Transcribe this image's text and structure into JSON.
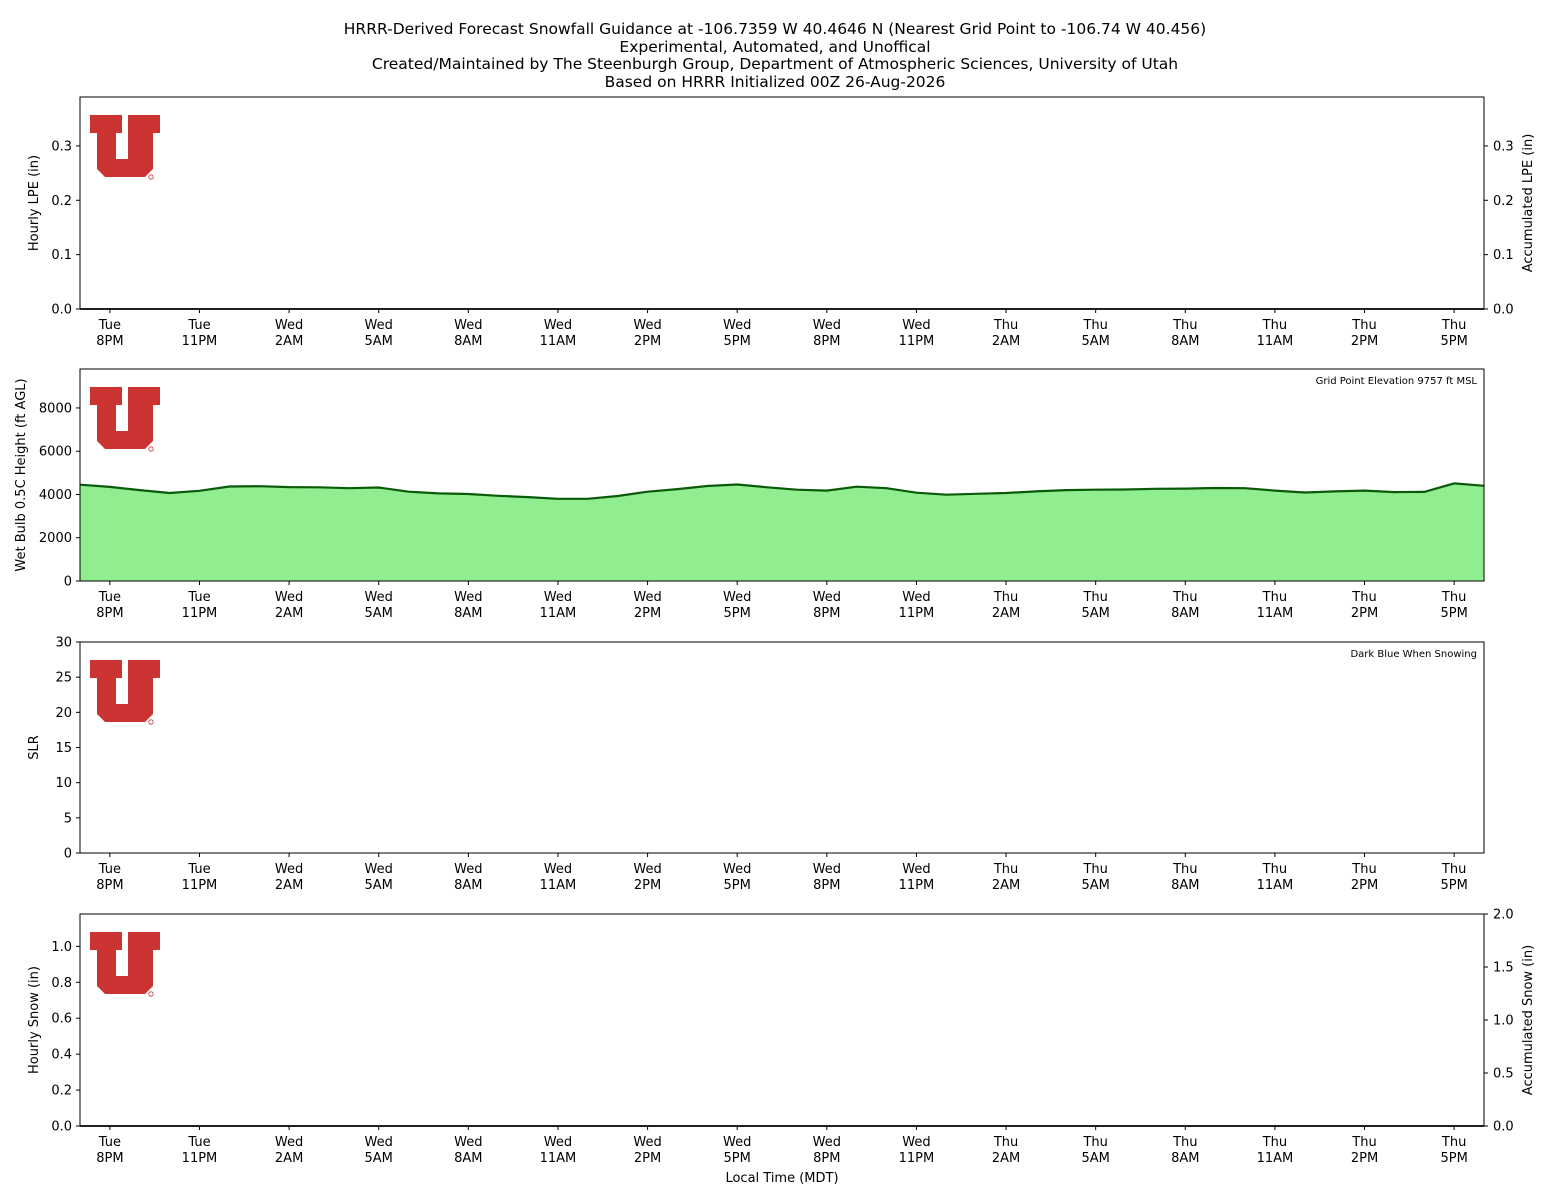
{
  "title_lines": [
    "HRRR-Derived Forecast Snowfall Guidance at -106.7359 W 40.4646 N (Nearest Grid Point to -106.74 W 40.456)",
    "Experimental, Automated, and Unoffical",
    "Created/Maintained by The Steenburgh Group, Department of Atmospheric Sciences, University of Utah",
    "Based on HRRR Initialized 00Z 26-Aug-2026"
  ],
  "xlabel": "Local Time (MDT)",
  "x_ticks": [
    {
      "hour": 1,
      "day": "Tue",
      "time": "8PM"
    },
    {
      "hour": 4,
      "day": "Tue",
      "time": "11PM"
    },
    {
      "hour": 7,
      "day": "Wed",
      "time": "2AM"
    },
    {
      "hour": 10,
      "day": "Wed",
      "time": "5AM"
    },
    {
      "hour": 13,
      "day": "Wed",
      "time": "8AM"
    },
    {
      "hour": 16,
      "day": "Wed",
      "time": "11AM"
    },
    {
      "hour": 19,
      "day": "Wed",
      "time": "2PM"
    },
    {
      "hour": 22,
      "day": "Wed",
      "time": "5PM"
    },
    {
      "hour": 25,
      "day": "Wed",
      "time": "8PM"
    },
    {
      "hour": 28,
      "day": "Wed",
      "time": "11PM"
    },
    {
      "hour": 31,
      "day": "Thu",
      "time": "2AM"
    },
    {
      "hour": 34,
      "day": "Thu",
      "time": "5AM"
    },
    {
      "hour": 37,
      "day": "Thu",
      "time": "8AM"
    },
    {
      "hour": 40,
      "day": "Thu",
      "time": "11AM"
    },
    {
      "hour": 43,
      "day": "Thu",
      "time": "2PM"
    },
    {
      "hour": 46,
      "day": "Thu",
      "time": "5PM"
    }
  ],
  "logo": {
    "color": "#cc3333",
    "icon": "university-of-utah-block-u-logo"
  },
  "chart_data": [
    {
      "type": "bar",
      "panel": "hourly-lpe",
      "ylabel": "Hourly LPE (in)",
      "y2label": "Accumulated LPE (in)",
      "ylim": [
        0,
        0.39
      ],
      "y_ticks": [
        "0.0",
        "0.1",
        "0.2",
        "0.3"
      ],
      "y2lim": [
        0,
        0.39
      ],
      "y2_ticks": [
        "0.0",
        "0.1",
        "0.2",
        "0.3"
      ],
      "xlim": [
        0,
        47
      ],
      "hours": [
        0,
        1,
        2,
        3,
        4,
        5,
        6,
        7,
        8,
        9,
        10,
        11,
        12,
        13,
        14,
        15,
        16,
        17,
        18,
        19,
        20,
        21,
        22,
        23,
        24,
        25,
        26,
        27,
        28,
        29,
        30,
        31,
        32,
        33,
        34,
        35,
        36,
        37,
        38,
        39,
        40,
        41,
        42,
        43,
        44,
        45,
        46,
        47
      ],
      "values": [
        0,
        0,
        0,
        0,
        0,
        0,
        0,
        0,
        0,
        0,
        0,
        0,
        0,
        0,
        0,
        0,
        0,
        0,
        0,
        0,
        0,
        0,
        0,
        0,
        0,
        0,
        0,
        0,
        0,
        0,
        0,
        0,
        0,
        0,
        0,
        0,
        0,
        0,
        0,
        0,
        0,
        0,
        0,
        0,
        0,
        0,
        0,
        0
      ],
      "accumulated": [
        0,
        0,
        0,
        0,
        0,
        0,
        0,
        0,
        0,
        0,
        0,
        0,
        0,
        0,
        0,
        0,
        0,
        0,
        0,
        0,
        0,
        0,
        0,
        0,
        0,
        0,
        0,
        0,
        0,
        0,
        0,
        0,
        0,
        0,
        0,
        0,
        0,
        0,
        0,
        0,
        0,
        0,
        0,
        0,
        0,
        0,
        0,
        0
      ],
      "accumulated_color": "#000000"
    },
    {
      "type": "area",
      "panel": "wet-bulb-height",
      "ylabel": "Wet Bulb 0.5C Height (ft AGL)",
      "annotation": "Grid Point Elevation 9757 ft MSL",
      "ylim": [
        0,
        9800
      ],
      "y_ticks": [
        "0",
        "2000",
        "4000",
        "6000",
        "8000"
      ],
      "xlim": [
        0,
        47
      ],
      "hours": [
        0,
        1,
        2,
        3,
        4,
        5,
        6,
        7,
        8,
        9,
        10,
        11,
        12,
        13,
        14,
        15,
        16,
        17,
        18,
        19,
        20,
        21,
        22,
        23,
        24,
        25,
        26,
        27,
        28,
        29,
        30,
        31,
        32,
        33,
        34,
        35,
        36,
        37,
        38,
        39,
        40,
        41,
        42,
        43,
        44,
        45,
        46,
        47
      ],
      "values": [
        4450,
        4350,
        4200,
        4070,
        4170,
        4370,
        4380,
        4340,
        4330,
        4290,
        4320,
        4130,
        4050,
        4020,
        3940,
        3880,
        3800,
        3800,
        3930,
        4130,
        4250,
        4390,
        4460,
        4330,
        4220,
        4180,
        4360,
        4290,
        4080,
        3990,
        4030,
        4070,
        4140,
        4200,
        4220,
        4230,
        4260,
        4270,
        4300,
        4290,
        4180,
        4090,
        4140,
        4180,
        4110,
        4120,
        4510,
        4400
      ],
      "fill_color": "#90ee90",
      "line_color": "#0a5a0a"
    },
    {
      "type": "bar",
      "panel": "slr",
      "ylabel": "SLR",
      "annotation": "Dark Blue When Snowing",
      "ylim": [
        0,
        30
      ],
      "y_ticks": [
        "0",
        "5",
        "10",
        "15",
        "20",
        "25",
        "30"
      ],
      "xlim": [
        0,
        47
      ],
      "values": []
    },
    {
      "type": "bar",
      "panel": "hourly-snow",
      "ylabel": "Hourly Snow (in)",
      "y2label": "Accumulated Snow (in)",
      "ylim": [
        0,
        1.18
      ],
      "y_ticks": [
        "0.0",
        "0.2",
        "0.4",
        "0.6",
        "0.8",
        "1.0"
      ],
      "y2lim": [
        0,
        2.0
      ],
      "y2_ticks": [
        "0.0",
        "0.5",
        "1.0",
        "1.5",
        "2.0"
      ],
      "xlim": [
        0,
        47
      ],
      "hours": [
        0,
        1,
        2,
        3,
        4,
        5,
        6,
        7,
        8,
        9,
        10,
        11,
        12,
        13,
        14,
        15,
        16,
        17,
        18,
        19,
        20,
        21,
        22,
        23,
        24,
        25,
        26,
        27,
        28,
        29,
        30,
        31,
        32,
        33,
        34,
        35,
        36,
        37,
        38,
        39,
        40,
        41,
        42,
        43,
        44,
        45,
        46,
        47
      ],
      "values": [
        0,
        0,
        0,
        0,
        0,
        0,
        0,
        0,
        0,
        0,
        0,
        0,
        0,
        0,
        0,
        0,
        0,
        0,
        0,
        0,
        0,
        0,
        0,
        0,
        0,
        0,
        0,
        0,
        0,
        0,
        0,
        0,
        0,
        0,
        0,
        0,
        0,
        0,
        0,
        0,
        0,
        0,
        0,
        0,
        0,
        0,
        0,
        0
      ],
      "accumulated": [
        0,
        0,
        0,
        0,
        0,
        0,
        0,
        0,
        0,
        0,
        0,
        0,
        0,
        0,
        0,
        0,
        0,
        0,
        0,
        0,
        0,
        0,
        0,
        0,
        0,
        0,
        0,
        0,
        0,
        0,
        0,
        0,
        0,
        0,
        0,
        0,
        0,
        0,
        0,
        0,
        0,
        0,
        0,
        0,
        0,
        0,
        0,
        0
      ],
      "accumulated_color": "#000000"
    }
  ]
}
